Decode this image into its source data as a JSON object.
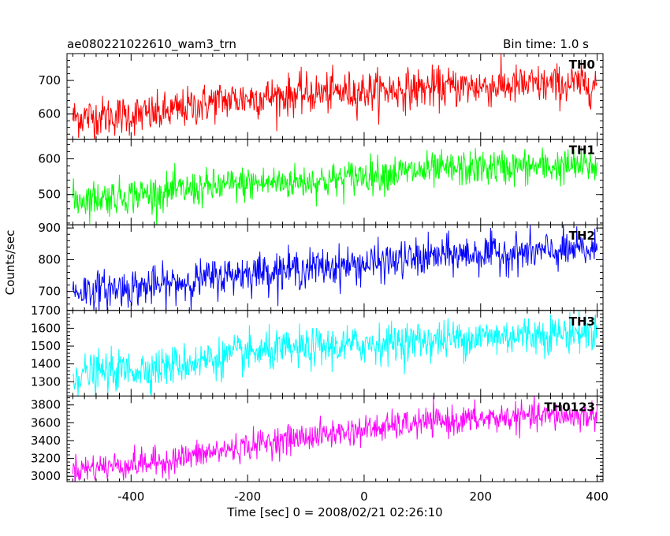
{
  "chart_data": {
    "type": "line",
    "title_left": "ae080221022610_wam3_trn",
    "title_right": "Bin time: 1.0 s",
    "xlabel": "Time [sec] 0 = 2008/02/21 02:26:10",
    "ylabel": "Counts/sec",
    "xlim": [
      -510,
      410
    ],
    "xticks": [
      -400,
      -200,
      0,
      200,
      400
    ],
    "x_range": [
      -500,
      400
    ],
    "grid": false,
    "panels": [
      {
        "name": "TH0",
        "color": "#ff0000",
        "ylim": [
          525,
          780
        ],
        "yticks": [
          600,
          700
        ],
        "trend": [
          [
            -500,
            590
          ],
          [
            -350,
            600
          ],
          [
            -250,
            640
          ],
          [
            -100,
            660
          ],
          [
            0,
            668
          ],
          [
            150,
            680
          ],
          [
            400,
            690
          ]
        ],
        "noise": 30
      },
      {
        "name": "TH1",
        "color": "#00ff00",
        "ylim": [
          415,
          655
        ],
        "yticks": [
          500,
          600
        ],
        "trend": [
          [
            -500,
            485
          ],
          [
            -350,
            505
          ],
          [
            -200,
            530
          ],
          [
            -50,
            540
          ],
          [
            0,
            555
          ],
          [
            200,
            575
          ],
          [
            400,
            580
          ]
        ],
        "noise": 25
      },
      {
        "name": "TH2",
        "color": "#0000ff",
        "ylim": [
          640,
          910
        ],
        "yticks": [
          700,
          800,
          900
        ],
        "trend": [
          [
            -500,
            700
          ],
          [
            -350,
            718
          ],
          [
            -200,
            760
          ],
          [
            0,
            785
          ],
          [
            150,
            815
          ],
          [
            400,
            830
          ]
        ],
        "noise": 30
      },
      {
        "name": "TH3",
        "color": "#00ffff",
        "ylim": [
          1220,
          1700
        ],
        "yticks": [
          1300,
          1400,
          1500,
          1600,
          1700
        ],
        "trend": [
          [
            -500,
            1340
          ],
          [
            -350,
            1380
          ],
          [
            -200,
            1460
          ],
          [
            0,
            1510
          ],
          [
            200,
            1550
          ],
          [
            400,
            1580
          ]
        ],
        "noise": 55
      },
      {
        "name": "TH0123",
        "color": "#ff00ff",
        "ylim": [
          2940,
          3900
        ],
        "yticks": [
          3000,
          3200,
          3400,
          3600,
          3800
        ],
        "trend": [
          [
            -500,
            3080
          ],
          [
            -350,
            3160
          ],
          [
            -250,
            3280
          ],
          [
            -150,
            3400
          ],
          [
            0,
            3520
          ],
          [
            100,
            3600
          ],
          [
            250,
            3660
          ],
          [
            400,
            3680
          ]
        ],
        "noise": 80
      }
    ]
  }
}
